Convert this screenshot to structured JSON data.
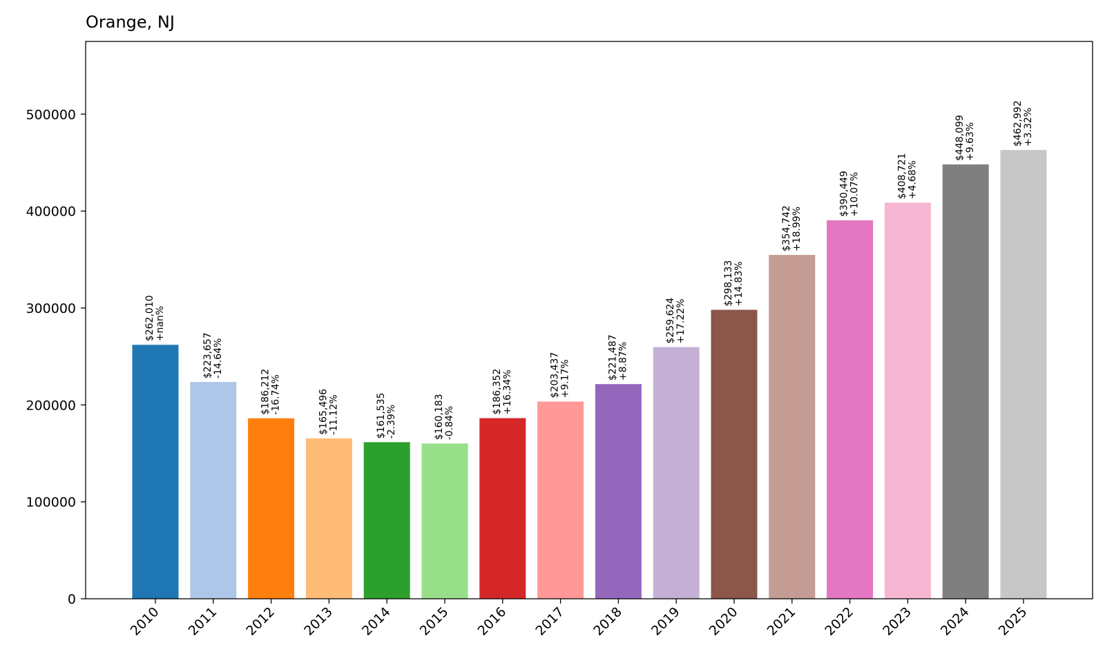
{
  "chart_data": {
    "type": "bar",
    "title": "Orange, NJ",
    "xlabel": "",
    "ylabel": "",
    "ylim": [
      0,
      575000
    ],
    "yticks": [
      0,
      100000,
      200000,
      300000,
      400000,
      500000
    ],
    "ytick_labels": [
      "0",
      "100000",
      "200000",
      "300000",
      "400000",
      "500000"
    ],
    "categories": [
      "2010",
      "2011",
      "2012",
      "2013",
      "2014",
      "2015",
      "2016",
      "2017",
      "2018",
      "2019",
      "2020",
      "2021",
      "2022",
      "2023",
      "2024",
      "2025"
    ],
    "values": [
      262010,
      223657,
      186212,
      165496,
      161535,
      160183,
      186352,
      203437,
      221487,
      259624,
      298133,
      354742,
      390449,
      408721,
      448099,
      462992
    ],
    "value_labels": [
      "$262,010",
      "$223,657",
      "$186,212",
      "$165,496",
      "$161,535",
      "$160,183",
      "$186,352",
      "$203,437",
      "$221,487",
      "$259,624",
      "$298,133",
      "$354,742",
      "$390,449",
      "$408,721",
      "$448,099",
      "$462,992"
    ],
    "change_labels": [
      "+nan%",
      "-14.64%",
      "-16.74%",
      "-11.12%",
      "-2.39%",
      "-0.84%",
      "+16.34%",
      "+9.17%",
      "+8.87%",
      "+17.22%",
      "+14.83%",
      "+18.99%",
      "+10.07%",
      "+4.68%",
      "+9.63%",
      "+3.32%"
    ],
    "colors": [
      "#1f77b4",
      "#aec7e8",
      "#ff7f0e",
      "#ffbb78",
      "#2ca02c",
      "#98df8a",
      "#d62728",
      "#ff9896",
      "#9467bd",
      "#c5b0d5",
      "#8c564b",
      "#c49c94",
      "#e377c2",
      "#f7b6d2",
      "#7f7f7f",
      "#c7c7c7"
    ],
    "grid": false,
    "legend": "none"
  }
}
